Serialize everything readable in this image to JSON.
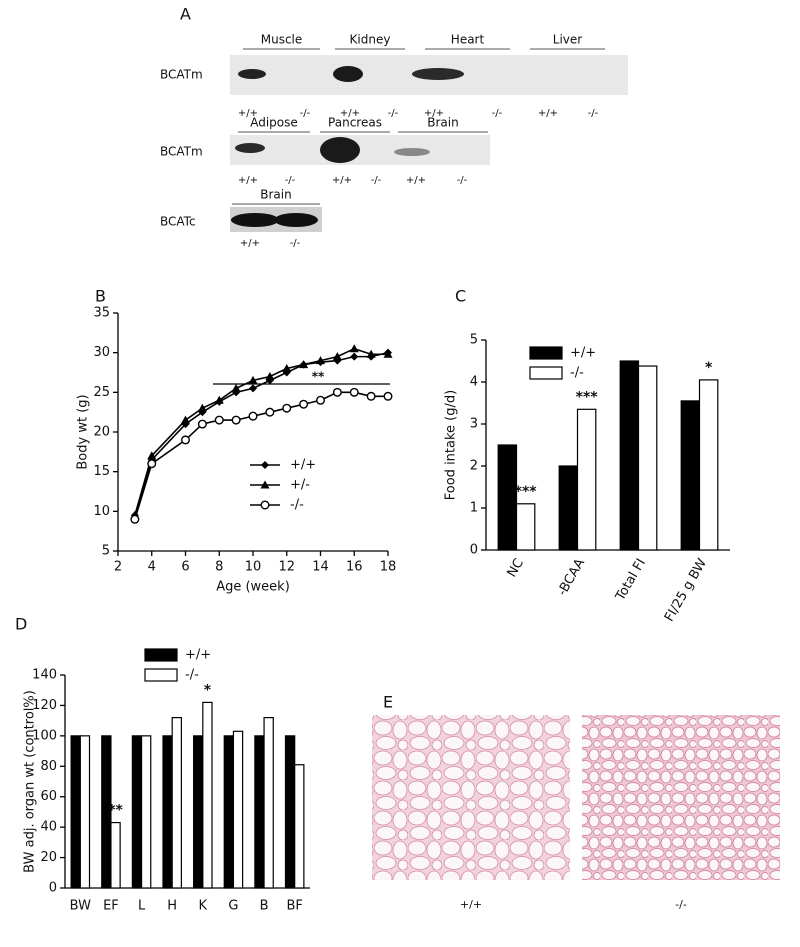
{
  "panel_a": {
    "label": "A",
    "rows": [
      {
        "protein": "BCATm",
        "tissues": [
          {
            "name": "Muscle",
            "genotypes": [
              "+/+",
              "-/-"
            ]
          },
          {
            "name": "Kidney",
            "genotypes": [
              "+/+",
              "-/-"
            ]
          },
          {
            "name": "Heart",
            "genotypes": [
              "+/+",
              "-/-"
            ]
          },
          {
            "name": "Liver",
            "genotypes": [
              "+/+",
              "-/-"
            ]
          }
        ]
      },
      {
        "protein": "BCATm",
        "tissues": [
          {
            "name": "Adipose",
            "genotypes": [
              "+/+",
              "-/-"
            ]
          },
          {
            "name": "Pancreas",
            "genotypes": [
              "+/+",
              "-/-"
            ]
          },
          {
            "name": "Brain",
            "genotypes": [
              "+/+",
              "-/-"
            ]
          }
        ]
      },
      {
        "protein": "BCATc",
        "tissues": [
          {
            "name": "Brain",
            "genotypes": [
              "+/+",
              "-/-"
            ]
          }
        ]
      }
    ]
  },
  "chart_data": [
    {
      "type": "line",
      "panel": "B",
      "x_label": "Age (week)",
      "y_label": "Body wt (g)",
      "x": [
        3,
        4,
        6,
        7,
        8,
        9,
        10,
        11,
        12,
        13,
        14,
        15,
        16,
        17,
        18
      ],
      "series": [
        {
          "name": "+/+",
          "color": "#000000",
          "marker": "diamond",
          "values": [
            9.5,
            16.5,
            21,
            22.5,
            23.8,
            25,
            25.5,
            26.5,
            27.5,
            28.5,
            28.8,
            29,
            29.5,
            29.5,
            30
          ]
        },
        {
          "name": "+/-",
          "color": "#000000",
          "marker": "triangle",
          "values": [
            9.5,
            17,
            21.5,
            23,
            24,
            25.5,
            26.5,
            27,
            28,
            28.5,
            29,
            29.5,
            30.5,
            29.8,
            29.8
          ]
        },
        {
          "name": "-/-",
          "color": "#000000",
          "marker": "open-circle",
          "values": [
            9,
            16,
            19,
            21,
            21.5,
            21.5,
            22,
            22.5,
            23,
            23.5,
            24,
            25,
            25,
            24.5,
            24.5
          ]
        }
      ],
      "xlim": [
        2,
        18
      ],
      "xticks": [
        2,
        4,
        6,
        8,
        10,
        12,
        14,
        16,
        18
      ],
      "ylim": [
        5,
        35
      ],
      "yticks": [
        5,
        10,
        15,
        20,
        25,
        30,
        35
      ],
      "annotations": [
        "**"
      ]
    },
    {
      "type": "bar",
      "panel": "C",
      "y_label": "Food intake (g/d)",
      "categories": [
        "NC",
        "-BCAA",
        "Total FI",
        "FI/25 g BW"
      ],
      "series": [
        {
          "name": "+/+",
          "color": "#000000",
          "values": [
            2.5,
            2.0,
            4.5,
            3.55
          ]
        },
        {
          "name": "-/-",
          "color": "#ffffff",
          "values": [
            1.1,
            3.35,
            4.38,
            4.05
          ]
        }
      ],
      "ylim": [
        0,
        5
      ],
      "yticks": [
        0,
        1,
        2,
        3,
        4,
        5
      ],
      "annotations": [
        "***",
        "***",
        "*"
      ]
    },
    {
      "type": "bar",
      "panel": "D",
      "y_label": "BW adj. organ wt (control%)",
      "categories": [
        "BW",
        "EF",
        "L",
        "H",
        "K",
        "G",
        "B",
        "BF"
      ],
      "series": [
        {
          "name": "+/+",
          "color": "#000000",
          "values": [
            100,
            100,
            100,
            100,
            100,
            100,
            100,
            100
          ]
        },
        {
          "name": "-/-",
          "color": "#ffffff",
          "values": [
            100,
            43,
            100,
            112,
            122,
            103,
            112,
            81
          ]
        }
      ],
      "ylim": [
        0,
        140
      ],
      "yticks": [
        0,
        20,
        40,
        60,
        80,
        100,
        120,
        140
      ],
      "annotations": [
        "**",
        "*"
      ]
    }
  ],
  "panel_e": {
    "label": "E",
    "images": [
      {
        "genotype": "+/+"
      },
      {
        "genotype": "-/-"
      }
    ]
  }
}
